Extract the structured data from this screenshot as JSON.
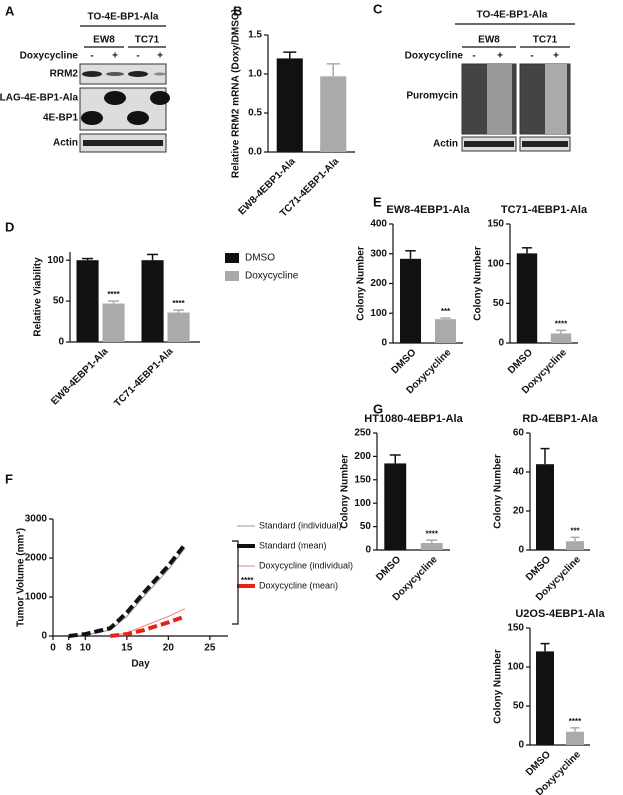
{
  "panel_labels": [
    "A",
    "B",
    "C",
    "D",
    "E",
    "F",
    "G"
  ],
  "blot_a": {
    "header": "TO-4E-BP1-Ala",
    "lanes": [
      "EW8",
      "TC71"
    ],
    "treatment": "Doxycycline",
    "signs": [
      "-",
      "+",
      "-",
      "+"
    ],
    "rows": [
      "RRM2",
      "FLAG-4E-BP1-Ala",
      "4E-BP1",
      "Actin"
    ]
  },
  "blot_c": {
    "header": "TO-4E-BP1-Ala",
    "lanes": [
      "EW8",
      "TC71"
    ],
    "treatment": "Doxycycline",
    "signs": [
      "-",
      "+",
      "-",
      "+"
    ],
    "rows": [
      "Puromycin",
      "Actin"
    ]
  },
  "chart_data": [
    {
      "type": "bar",
      "ylabel": "Relative RRM2 mRNA (Doxy/DMSO)",
      "categories": [
        "EW8-4EBP1-Ala",
        "TC71-4EBP1-Ala"
      ],
      "values": [
        1.2,
        0.97
      ],
      "errors": [
        0.08,
        0.16
      ],
      "colors": [
        "#111111",
        "#aaaaaa"
      ],
      "ylim": [
        0,
        1.5
      ],
      "yticks": [
        {
          "value": 0,
          "label": "0.0"
        },
        {
          "value": 0.5,
          "label": "0.5"
        },
        {
          "value": 1,
          "label": "1.0"
        },
        {
          "value": 1.5,
          "label": "1.5"
        }
      ]
    },
    {
      "type": "bar",
      "ylabel": "Relative Viability",
      "categories": [
        "EW8-4EBP1-Ala",
        "TC71-4EBP1-Ala"
      ],
      "series": [
        {
          "name": "DMSO",
          "color": "#111111",
          "values": [
            100,
            100
          ],
          "errors": [
            2,
            7
          ]
        },
        {
          "name": "Doxycycline",
          "color": "#aaaaaa",
          "values": [
            47,
            36
          ],
          "errors": [
            3,
            3
          ]
        }
      ],
      "significance": [
        "****",
        "****"
      ],
      "ylim": [
        0,
        110
      ],
      "yticks": [
        0,
        50,
        100
      ]
    },
    {
      "type": "bar",
      "title": "EW8-4EBP1-Ala",
      "ylabel": "Colony Number",
      "categories": [
        "DMSO",
        "Doxycycline"
      ],
      "values": [
        283,
        80
      ],
      "errors": [
        27,
        4
      ],
      "colors": [
        "#111111",
        "#aaaaaa"
      ],
      "significance": "***",
      "ylim": [
        0,
        400
      ],
      "yticks": [
        0,
        100,
        200,
        300,
        400
      ]
    },
    {
      "type": "bar",
      "title": "TC71-4EBP1-Ala",
      "ylabel": "Colony Number",
      "categories": [
        "DMSO",
        "Doxycycline"
      ],
      "values": [
        113,
        12
      ],
      "errors": [
        7,
        4
      ],
      "colors": [
        "#111111",
        "#aaaaaa"
      ],
      "significance": "****",
      "ylim": [
        0,
        150
      ],
      "yticks": [
        0,
        50,
        100,
        150
      ]
    },
    {
      "type": "bar",
      "title": "HT1080-4EBP1-Ala",
      "ylabel": "Colony Number",
      "categories": [
        "DMSO",
        "Doxycycline"
      ],
      "values": [
        185,
        15
      ],
      "errors": [
        18,
        6
      ],
      "colors": [
        "#111111",
        "#aaaaaa"
      ],
      "significance": "****",
      "ylim": [
        0,
        250
      ],
      "yticks": [
        0,
        50,
        100,
        150,
        200,
        250
      ]
    },
    {
      "type": "bar",
      "title": "RD-4EBP1-Ala",
      "ylabel": "Colony Number",
      "categories": [
        "DMSO",
        "Doxycycline"
      ],
      "values": [
        44,
        4.5
      ],
      "errors": [
        8,
        2
      ],
      "colors": [
        "#111111",
        "#aaaaaa"
      ],
      "significance": "***",
      "ylim": [
        0,
        60
      ],
      "yticks": [
        0,
        20,
        40,
        60
      ]
    },
    {
      "type": "bar",
      "title": "U2OS-4EBP1-Ala",
      "ylabel": "Colony Number",
      "categories": [
        "DMSO",
        "Doxycycline"
      ],
      "values": [
        120,
        17
      ],
      "errors": [
        10,
        5
      ],
      "colors": [
        "#111111",
        "#aaaaaa"
      ],
      "significance": "****",
      "ylim": [
        0,
        150
      ],
      "yticks": [
        0,
        50,
        100,
        150
      ]
    },
    {
      "type": "line",
      "xlabel": "Day",
      "ylabel": "Tumor Volume (mm³)",
      "significance": "****",
      "xlim": [
        0,
        25
      ],
      "xticks": [
        0,
        8,
        10,
        15,
        20,
        25
      ],
      "ylim": [
        0,
        3000
      ],
      "yticks": [
        0,
        1000,
        2000,
        3000
      ],
      "series": [
        {
          "name": "Standard (individual)",
          "color": "#999999",
          "width": 1,
          "x": [
            8,
            10,
            13,
            15,
            17,
            20,
            22
          ],
          "values": [
            0,
            30,
            150,
            500,
            1000,
            1700,
            2250
          ]
        },
        {
          "name": "Standard (mean)",
          "color": "#111111",
          "width": 4,
          "dash": true,
          "x": [
            8,
            10,
            13,
            15,
            17,
            20,
            22
          ],
          "values": [
            0,
            50,
            200,
            600,
            1100,
            1800,
            2350
          ]
        },
        {
          "name": "Doxycycline (individual)",
          "color": "#f08080",
          "width": 1,
          "x": [
            13,
            15,
            17,
            20,
            22
          ],
          "values": [
            0,
            80,
            250,
            500,
            700
          ]
        },
        {
          "name": "Doxycycline (mean)",
          "color": "#e8201a",
          "width": 4,
          "dash": true,
          "x": [
            13,
            15,
            17,
            20,
            22
          ],
          "values": [
            0,
            50,
            150,
            350,
            500
          ]
        }
      ]
    }
  ]
}
